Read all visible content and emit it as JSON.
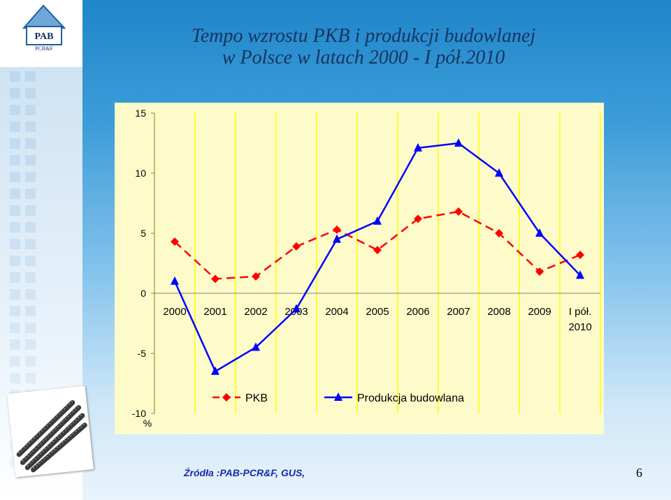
{
  "logo": {
    "text": "PAB",
    "subtext": "PCR&F"
  },
  "title": {
    "line1": "Tempo wzrostu PKB i produkcji budowlanej",
    "line2": "w Polsce w latach 2000 - I pół.2010"
  },
  "chart_data": {
    "type": "line",
    "categories": [
      [
        "2000"
      ],
      [
        "2001"
      ],
      [
        "2002"
      ],
      [
        "2003"
      ],
      [
        "2004"
      ],
      [
        "2005"
      ],
      [
        "2006"
      ],
      [
        "2007"
      ],
      [
        "2008"
      ],
      [
        "2009"
      ],
      [
        "I pół.",
        "2010"
      ]
    ],
    "series": [
      {
        "name": "PKB",
        "values": [
          4.3,
          1.2,
          1.4,
          3.9,
          5.3,
          3.6,
          6.2,
          6.8,
          5.0,
          1.8,
          3.2
        ],
        "color": "#ff0000",
        "marker": "diamond",
        "dash": true
      },
      {
        "name": "Produkcja budowlana",
        "values": [
          1.0,
          -6.5,
          -4.5,
          -1.3,
          4.5,
          6.0,
          12.1,
          12.5,
          10.0,
          5.0,
          1.5
        ],
        "color": "#0000ff",
        "marker": "triangle",
        "dash": false
      }
    ],
    "yticks": [
      15,
      10,
      5,
      0,
      -5,
      -10
    ],
    "ylim": [
      -10,
      15
    ],
    "ylabel": "%",
    "grid": "vertical",
    "gridColor": "#ffff00",
    "legend": "bottom"
  },
  "source": "Źródła :PAB-PCR&F, GUS,",
  "page_number": "6"
}
